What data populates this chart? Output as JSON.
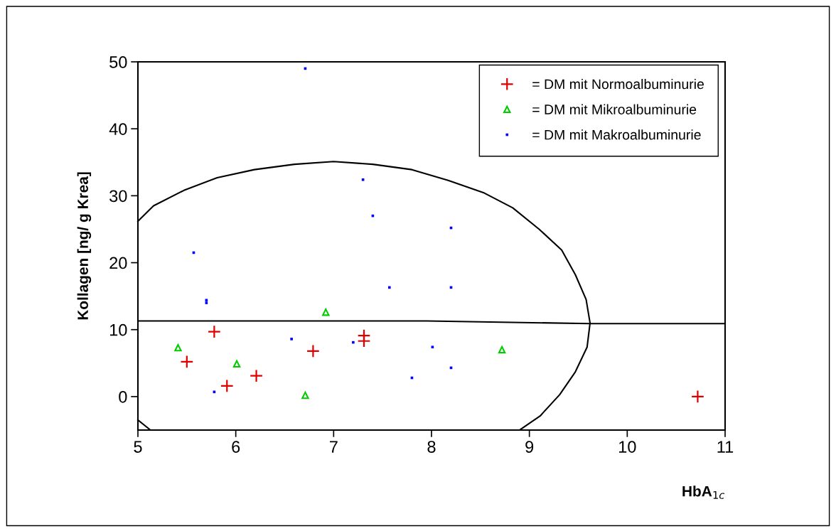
{
  "chart_data": {
    "type": "scatter",
    "xlabel": "HbA$_{1c}$",
    "ylabel": "Kollagen [ng/ g Krea]",
    "xlim": [
      5,
      11
    ],
    "ylim": [
      -5,
      50
    ],
    "xticks": [
      5,
      6,
      7,
      8,
      9,
      10,
      11
    ],
    "yticks": [
      0,
      10,
      20,
      30,
      40,
      50
    ],
    "grid": false,
    "legend": "top right",
    "series": [
      {
        "name": "= DM mit Normoalbuminurie",
        "color": "#e00000",
        "marker": "cross",
        "x": [
          5.5,
          5.78,
          5.91,
          6.21,
          6.79,
          7.31,
          7.31,
          10.72
        ],
        "values": [
          5.2,
          9.7,
          1.6,
          3.1,
          6.8,
          9.1,
          8.3,
          0
        ]
      },
      {
        "name": "= DM mit Mikroalbuminurie",
        "color": "#00cc00",
        "marker": "triangle",
        "x": [
          5.41,
          6.01,
          6.92,
          6.71,
          8.72
        ],
        "values": [
          7.3,
          4.9,
          12.6,
          0.2,
          7.0
        ]
      },
      {
        "name": "= DM mit Makroalbuminurie",
        "color": "#0000ff",
        "marker": "square",
        "x": [
          6.71,
          7.3,
          7.4,
          8.2,
          5.57,
          5.7,
          5.7,
          7.57,
          8.2,
          6.57,
          7.2,
          8.01,
          8.2,
          7.8,
          5.78
        ],
        "values": [
          49.0,
          32.4,
          27.0,
          25.2,
          21.5,
          14.4,
          14.0,
          16.3,
          16.3,
          8.6,
          8.1,
          7.4,
          4.3,
          2.8,
          0.7
        ]
      },
      {
        "type": "line",
        "color": "#000000",
        "marker": "none",
        "x": [
          5,
          5.16,
          5.47,
          5.81,
          6.19,
          6.6,
          7.0,
          7.4,
          7.8,
          8.17,
          8.54,
          8.83,
          9.1,
          9.33,
          9.47,
          9.58,
          9.62,
          9.59,
          9.47,
          9.31,
          9.11,
          8.91
        ],
        "values": [
          26.2,
          28.5,
          30.8,
          32.7,
          33.9,
          34.7,
          35.1,
          34.7,
          33.9,
          32.3,
          30.4,
          28.2,
          25.0,
          21.9,
          18.2,
          14.5,
          11.0,
          7.4,
          3.7,
          0.3,
          -2.9,
          -4.9
        ]
      },
      {
        "type": "line",
        "color": "#000000",
        "marker": "none",
        "x": [
          5,
          5.12
        ],
        "values": [
          -3.5,
          -4.9
        ]
      },
      {
        "type": "line",
        "color": "#000000",
        "marker": "none",
        "x": [
          5,
          7.95,
          9.62,
          11
        ],
        "values": [
          11.3,
          11.3,
          10.9,
          10.9
        ]
      }
    ]
  }
}
